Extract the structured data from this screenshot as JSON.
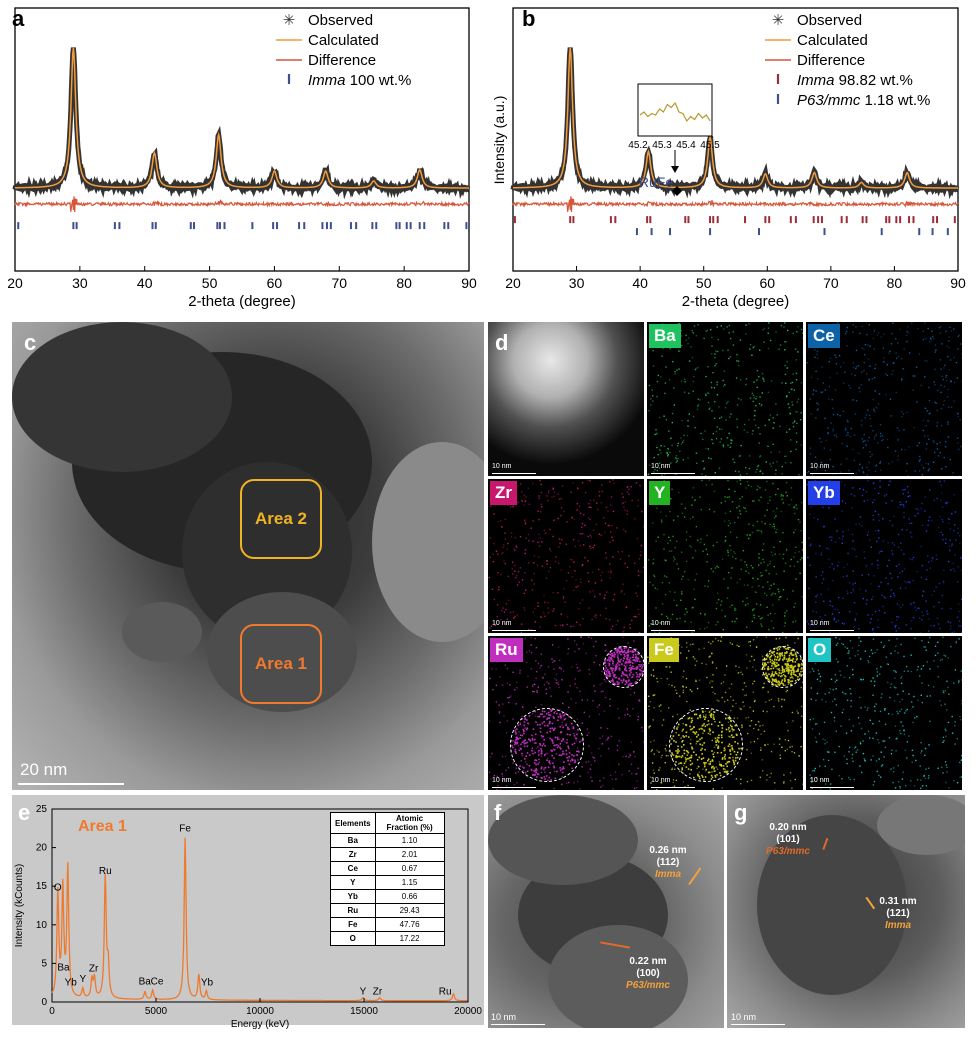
{
  "panels": {
    "a": "a",
    "b": "b",
    "c": "c",
    "d": "d",
    "e": "e",
    "f": "f",
    "g": "g"
  },
  "panel_a": {
    "chart_data": {
      "type": "line",
      "title": "",
      "xlabel": "2-theta (degree)",
      "ylabel": "",
      "xlim": [
        20,
        90
      ],
      "xticks": [
        20,
        30,
        40,
        50,
        60,
        70,
        80,
        90
      ],
      "legend": [
        {
          "symbol": "✳",
          "label": "Observed",
          "italic": "",
          "rest": ""
        },
        {
          "symbol": "line",
          "color": "#f39a3b",
          "label": "Calculated",
          "italic": "",
          "rest": ""
        },
        {
          "symbol": "line",
          "color": "#d4573a",
          "label": "Difference",
          "italic": "",
          "rest": ""
        },
        {
          "symbol": "|",
          "color": "#3f4f8c",
          "label": "",
          "italic": "Imma",
          "rest": " 100 wt.%"
        }
      ],
      "peaks": [
        {
          "x": 29.0,
          "h": 1.0
        },
        {
          "x": 41.5,
          "h": 0.25
        },
        {
          "x": 51.4,
          "h": 0.38
        },
        {
          "x": 60.0,
          "h": 0.12
        },
        {
          "x": 67.9,
          "h": 0.12
        },
        {
          "x": 75.3,
          "h": 0.05
        },
        {
          "x": 82.4,
          "h": 0.13
        }
      ],
      "imma_ticks": [
        20.5,
        29.0,
        29.5,
        35.4,
        36.1,
        41.2,
        41.7,
        47.1,
        47.6,
        51.2,
        51.6,
        52.3,
        56.6,
        59.8,
        60.4,
        63.8,
        64.6,
        67.4,
        68.1,
        68.7,
        71.8,
        72.6,
        75.1,
        75.7,
        78.8,
        79.3,
        80.4,
        81.0,
        82.4,
        83.1,
        86.2,
        86.8,
        89.6
      ]
    }
  },
  "panel_b": {
    "chart_data": {
      "type": "line",
      "title": "",
      "xlabel": "2-theta (degree)",
      "ylabel": "Intensity (a.u.)",
      "xlim": [
        20,
        90
      ],
      "xticks": [
        20,
        30,
        40,
        50,
        60,
        70,
        80,
        90
      ],
      "legend": [
        {
          "symbol": "✳",
          "label": "Observed",
          "italic": "",
          "rest": ""
        },
        {
          "symbol": "line",
          "color": "#f39a3b",
          "label": "Calculated",
          "italic": "",
          "rest": ""
        },
        {
          "symbol": "line",
          "color": "#d4573a",
          "label": "Difference",
          "italic": "",
          "rest": ""
        },
        {
          "symbol": "|",
          "color": "#9b2d3a",
          "label": "",
          "italic": "Imma",
          "rest": " 98.82 wt.%"
        },
        {
          "symbol": "|",
          "color": "#3f4f8c",
          "label": "",
          "italic": "P63/mmc",
          "rest": " 1.18 wt.%"
        }
      ],
      "peaks": [
        {
          "x": 29.0,
          "h": 1.0
        },
        {
          "x": 41.3,
          "h": 0.26
        },
        {
          "x": 51.0,
          "h": 0.36
        },
        {
          "x": 59.7,
          "h": 0.1
        },
        {
          "x": 67.4,
          "h": 0.11
        },
        {
          "x": 74.8,
          "h": 0.04
        },
        {
          "x": 82.0,
          "h": 0.11
        }
      ],
      "imma_ticks": [
        20.3,
        29.0,
        29.5,
        35.4,
        36.1,
        41.1,
        41.6,
        47.1,
        47.6,
        51.0,
        51.5,
        52.2,
        56.5,
        59.7,
        60.3,
        63.7,
        64.5,
        67.3,
        68.0,
        68.6,
        71.7,
        72.5,
        75.0,
        75.6,
        78.7,
        79.2,
        80.3,
        80.9,
        82.3,
        83.0,
        86.1,
        86.7,
        89.5
      ],
      "p63_ticks": [
        39.5,
        41.8,
        44.7,
        51.0,
        58.7,
        69.0,
        78.0,
        83.9,
        86.0,
        88.4
      ],
      "inset": {
        "xticks": [
          "45.2",
          "45.3",
          "45.4",
          "45.5"
        ],
        "label": "RuFe"
      }
    }
  },
  "panel_c": {
    "area1": "Area 1",
    "area2": "Area 2",
    "scale": "20 nm"
  },
  "panel_d": {
    "maps": [
      {
        "label": "",
        "color": "",
        "scale": "10 nm"
      },
      {
        "label": "Ba",
        "color": "#1ec25e",
        "scale": "10 nm"
      },
      {
        "label": "Ce",
        "color": "#0c63a8",
        "scale": "10 nm"
      },
      {
        "label": "Zr",
        "color": "#c8186e",
        "scale": "10 nm"
      },
      {
        "label": "Y",
        "color": "#22b222",
        "scale": "10 nm"
      },
      {
        "label": "Yb",
        "color": "#2340e8",
        "scale": "10 nm"
      },
      {
        "label": "Ru",
        "color": "#c02ec0",
        "scale": "10 nm"
      },
      {
        "label": "Fe",
        "color": "#c9c91e",
        "scale": "10 nm"
      },
      {
        "label": "O",
        "color": "#1fc4c4",
        "scale": "10 nm"
      }
    ]
  },
  "panel_e": {
    "chart_data": {
      "type": "line",
      "title": "Area 1",
      "xlabel": "Energy (keV)",
      "ylabel": "Intensity (kCounts)",
      "xlim": [
        0,
        20000
      ],
      "ylim": [
        0,
        25
      ],
      "xticks": [
        0,
        5000,
        10000,
        15000,
        20000
      ],
      "yticks": [
        0,
        5,
        10,
        15,
        20,
        25
      ],
      "peaks": [
        {
          "x": 280,
          "y": 13.5
        },
        {
          "x": 520,
          "y": 14.0
        },
        {
          "x": 760,
          "y": 16.8
        },
        {
          "x": 1480,
          "y": 1.2
        },
        {
          "x": 1920,
          "y": 2.3
        },
        {
          "x": 2040,
          "y": 2.6
        },
        {
          "x": 2560,
          "y": 15.6
        },
        {
          "x": 2700,
          "y": 4.2
        },
        {
          "x": 4470,
          "y": 1.0
        },
        {
          "x": 4840,
          "y": 1.2
        },
        {
          "x": 6400,
          "y": 21.0
        },
        {
          "x": 7060,
          "y": 3.2
        },
        {
          "x": 7420,
          "y": 1.1
        },
        {
          "x": 14950,
          "y": 0.4
        },
        {
          "x": 15750,
          "y": 0.4
        },
        {
          "x": 19300,
          "y": 0.9
        }
      ],
      "peak_labels": [
        {
          "text": "O",
          "x": 280,
          "y": 14.2
        },
        {
          "text": "Ba",
          "x": 550,
          "y": 3.8
        },
        {
          "text": "Yb",
          "x": 900,
          "y": 1.9
        },
        {
          "text": "Y",
          "x": 1480,
          "y": 2.3
        },
        {
          "text": "Zr",
          "x": 2000,
          "y": 3.7
        },
        {
          "text": "Ru",
          "x": 2560,
          "y": 16.3
        },
        {
          "text": "Ba",
          "x": 4460,
          "y": 2.0
        },
        {
          "text": "Ce",
          "x": 5050,
          "y": 2.0
        },
        {
          "text": "Fe",
          "x": 6400,
          "y": 21.8
        },
        {
          "text": "Yb",
          "x": 7450,
          "y": 1.9
        },
        {
          "text": "Y",
          "x": 14950,
          "y": 0.7
        },
        {
          "text": "Zr",
          "x": 15650,
          "y": 0.7
        },
        {
          "text": "Ru",
          "x": 18900,
          "y": 0.7
        }
      ]
    },
    "table": {
      "headers": [
        "Elements",
        "Atomic Fraction (%)"
      ],
      "rows": [
        [
          "Ba",
          "1.10"
        ],
        [
          "Zr",
          "2.01"
        ],
        [
          "Ce",
          "0.67"
        ],
        [
          "Y",
          "1.15"
        ],
        [
          "Yb",
          "0.66"
        ],
        [
          "Ru",
          "29.43"
        ],
        [
          "Fe",
          "47.76"
        ],
        [
          "O",
          "17.22"
        ]
      ]
    }
  },
  "panel_f": {
    "ann1": {
      "d": "0.26 nm",
      "hkl": "(112)",
      "phase": "Imma"
    },
    "ann2": {
      "d": "0.22 nm",
      "hkl": "(100)",
      "phase": "P63/mmc"
    },
    "scale": "10 nm"
  },
  "panel_g": {
    "ann1": {
      "d": "0.20 nm",
      "hkl": "(101)",
      "phase": "P63/mmc"
    },
    "ann2": {
      "d": "0.31 nm",
      "hkl": "(121)",
      "phase": "Imma"
    },
    "scale": "10 nm"
  }
}
